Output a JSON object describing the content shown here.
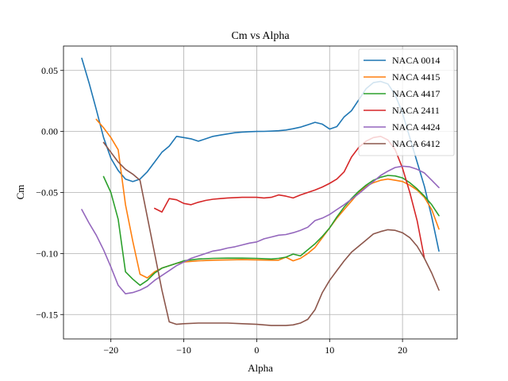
{
  "chart_data": {
    "type": "line",
    "title": "Cm vs Alpha",
    "xlabel": "Alpha",
    "ylabel": "Cm",
    "xlim": [
      -26.5,
      27.5
    ],
    "ylim": [
      -0.17,
      0.07
    ],
    "xticks": [
      -20,
      -10,
      0,
      10,
      20
    ],
    "yticks": [
      -0.15,
      -0.1,
      -0.05,
      0.0,
      0.05
    ],
    "xtick_labels": [
      "−20",
      "−10",
      "0",
      "10",
      "20"
    ],
    "ytick_labels": [
      "−0.15",
      "−0.10",
      "−0.05",
      "0.00",
      "0.05"
    ],
    "grid": true,
    "legend_position": "top-right",
    "series": [
      {
        "name": "NACA 0014",
        "color": "#1f77b4",
        "points": [
          [
            -24,
            0.06
          ],
          [
            -23,
            0.04
          ],
          [
            -22,
            0.018
          ],
          [
            -21,
            -0.005
          ],
          [
            -20,
            -0.022
          ],
          [
            -19,
            -0.032
          ],
          [
            -18,
            -0.039
          ],
          [
            -17,
            -0.041
          ],
          [
            -16,
            -0.039
          ],
          [
            -15,
            -0.033
          ],
          [
            -14,
            -0.025
          ],
          [
            -13,
            -0.017
          ],
          [
            -12,
            -0.012
          ],
          [
            -11,
            -0.004
          ],
          [
            -10,
            -0.005
          ],
          [
            -9,
            -0.006
          ],
          [
            -8,
            -0.008
          ],
          [
            -7,
            -0.006
          ],
          [
            -6,
            -0.004
          ],
          [
            -5,
            -0.003
          ],
          [
            -4,
            -0.002
          ],
          [
            -3,
            -0.001
          ],
          [
            -2,
            -0.0005
          ],
          [
            -1,
            -0.0002
          ],
          [
            0,
            0
          ],
          [
            1,
            0.0001
          ],
          [
            2,
            0.0003
          ],
          [
            3,
            0.0006
          ],
          [
            4,
            0.0012
          ],
          [
            5,
            0.0022
          ],
          [
            6,
            0.0035
          ],
          [
            7,
            0.0055
          ],
          [
            8,
            0.0075
          ],
          [
            9,
            0.006
          ],
          [
            10,
            0.002
          ],
          [
            11,
            0.004
          ],
          [
            12,
            0.012
          ],
          [
            13,
            0.017
          ],
          [
            14,
            0.026
          ],
          [
            15,
            0.035
          ],
          [
            16,
            0.04
          ],
          [
            17,
            0.041
          ],
          [
            18,
            0.039
          ],
          [
            19,
            0.03
          ],
          [
            20,
            0.015
          ],
          [
            21,
            -0.005
          ],
          [
            22,
            -0.025
          ],
          [
            23,
            -0.045
          ],
          [
            24,
            -0.07
          ],
          [
            25,
            -0.098
          ]
        ]
      },
      {
        "name": "NACA 4415",
        "color": "#ff7f0e",
        "points": [
          [
            -22,
            0.01
          ],
          [
            -21,
            0.003
          ],
          [
            -20,
            -0.005
          ],
          [
            -19,
            -0.015
          ],
          [
            -18,
            -0.06
          ],
          [
            -17,
            -0.09
          ],
          [
            -16,
            -0.117
          ],
          [
            -15,
            -0.12
          ],
          [
            -14,
            -0.115
          ],
          [
            -13,
            -0.112
          ],
          [
            -12,
            -0.11
          ],
          [
            -11,
            -0.108
          ],
          [
            -10,
            -0.107
          ],
          [
            -8,
            -0.106
          ],
          [
            -6,
            -0.1055
          ],
          [
            -4,
            -0.1052
          ],
          [
            -2,
            -0.105
          ],
          [
            0,
            -0.1052
          ],
          [
            2,
            -0.1055
          ],
          [
            3,
            -0.1055
          ],
          [
            4,
            -0.103
          ],
          [
            5,
            -0.106
          ],
          [
            6,
            -0.104
          ],
          [
            7,
            -0.1
          ],
          [
            8,
            -0.095
          ],
          [
            9,
            -0.087
          ],
          [
            10,
            -0.079
          ],
          [
            11,
            -0.071
          ],
          [
            12,
            -0.064
          ],
          [
            13,
            -0.057
          ],
          [
            14,
            -0.05
          ],
          [
            15,
            -0.045
          ],
          [
            16,
            -0.042
          ],
          [
            17,
            -0.04
          ],
          [
            18,
            -0.039
          ],
          [
            19,
            -0.04
          ],
          [
            20,
            -0.041
          ],
          [
            21,
            -0.044
          ],
          [
            22,
            -0.048
          ],
          [
            23,
            -0.054
          ],
          [
            24,
            -0.064
          ],
          [
            25,
            -0.08
          ]
        ]
      },
      {
        "name": "NACA 4417",
        "color": "#2ca02c",
        "points": [
          [
            -21,
            -0.037
          ],
          [
            -20,
            -0.05
          ],
          [
            -19,
            -0.072
          ],
          [
            -18,
            -0.115
          ],
          [
            -17,
            -0.121
          ],
          [
            -16,
            -0.126
          ],
          [
            -15,
            -0.122
          ],
          [
            -14,
            -0.116
          ],
          [
            -13,
            -0.112
          ],
          [
            -12,
            -0.11
          ],
          [
            -11,
            -0.108
          ],
          [
            -10,
            -0.106
          ],
          [
            -8,
            -0.1045
          ],
          [
            -6,
            -0.104
          ],
          [
            -4,
            -0.1038
          ],
          [
            -2,
            -0.1038
          ],
          [
            0,
            -0.104
          ],
          [
            2,
            -0.1045
          ],
          [
            3,
            -0.104
          ],
          [
            4,
            -0.103
          ],
          [
            5,
            -0.1005
          ],
          [
            6,
            -0.102
          ],
          [
            7,
            -0.097
          ],
          [
            8,
            -0.092
          ],
          [
            9,
            -0.086
          ],
          [
            10,
            -0.079
          ],
          [
            11,
            -0.07
          ],
          [
            12,
            -0.062
          ],
          [
            13,
            -0.055
          ],
          [
            14,
            -0.049
          ],
          [
            15,
            -0.044
          ],
          [
            16,
            -0.04
          ],
          [
            17,
            -0.0375
          ],
          [
            18,
            -0.036
          ],
          [
            19,
            -0.0365
          ],
          [
            20,
            -0.038
          ],
          [
            21,
            -0.042
          ],
          [
            22,
            -0.047
          ],
          [
            23,
            -0.053
          ],
          [
            24,
            -0.06
          ],
          [
            25,
            -0.069
          ]
        ]
      },
      {
        "name": "NACA 2411",
        "color": "#d62728",
        "points": [
          [
            -14,
            -0.063
          ],
          [
            -13,
            -0.066
          ],
          [
            -12,
            -0.055
          ],
          [
            -11,
            -0.056
          ],
          [
            -10,
            -0.059
          ],
          [
            -9,
            -0.06
          ],
          [
            -8,
            -0.058
          ],
          [
            -7,
            -0.0565
          ],
          [
            -6,
            -0.0555
          ],
          [
            -5,
            -0.055
          ],
          [
            -4,
            -0.0545
          ],
          [
            -2,
            -0.054
          ],
          [
            0,
            -0.054
          ],
          [
            1,
            -0.0545
          ],
          [
            2,
            -0.054
          ],
          [
            3,
            -0.052
          ],
          [
            4,
            -0.053
          ],
          [
            5,
            -0.0545
          ],
          [
            6,
            -0.052
          ],
          [
            7,
            -0.05
          ],
          [
            8,
            -0.048
          ],
          [
            9,
            -0.0455
          ],
          [
            10,
            -0.0425
          ],
          [
            11,
            -0.039
          ],
          [
            12,
            -0.033
          ],
          [
            13,
            -0.021
          ],
          [
            14,
            -0.013
          ],
          [
            15,
            -0.008
          ],
          [
            16,
            -0.005
          ],
          [
            17,
            -0.004
          ],
          [
            18,
            -0.007
          ],
          [
            19,
            -0.015
          ],
          [
            20,
            -0.03
          ],
          [
            21,
            -0.05
          ],
          [
            22,
            -0.073
          ],
          [
            23,
            -0.104
          ]
        ]
      },
      {
        "name": "NACA 4424",
        "color": "#9467bd",
        "points": [
          [
            -24,
            -0.064
          ],
          [
            -23,
            -0.075
          ],
          [
            -22,
            -0.085
          ],
          [
            -21,
            -0.097
          ],
          [
            -20,
            -0.111
          ],
          [
            -19,
            -0.126
          ],
          [
            -18,
            -0.133
          ],
          [
            -17,
            -0.132
          ],
          [
            -16,
            -0.13
          ],
          [
            -15,
            -0.127
          ],
          [
            -14,
            -0.122
          ],
          [
            -13,
            -0.118
          ],
          [
            -12,
            -0.114
          ],
          [
            -11,
            -0.11
          ],
          [
            -10,
            -0.107
          ],
          [
            -9,
            -0.104
          ],
          [
            -8,
            -0.102
          ],
          [
            -7,
            -0.1
          ],
          [
            -6,
            -0.098
          ],
          [
            -5,
            -0.097
          ],
          [
            -4,
            -0.0955
          ],
          [
            -3,
            -0.0945
          ],
          [
            -2,
            -0.093
          ],
          [
            -1,
            -0.0915
          ],
          [
            0,
            -0.0905
          ],
          [
            1,
            -0.088
          ],
          [
            2,
            -0.0865
          ],
          [
            3,
            -0.085
          ],
          [
            4,
            -0.0845
          ],
          [
            5,
            -0.083
          ],
          [
            6,
            -0.081
          ],
          [
            7,
            -0.0785
          ],
          [
            8,
            -0.073
          ],
          [
            9,
            -0.071
          ],
          [
            10,
            -0.068
          ],
          [
            11,
            -0.064
          ],
          [
            12,
            -0.06
          ],
          [
            13,
            -0.0555
          ],
          [
            14,
            -0.051
          ],
          [
            15,
            -0.046
          ],
          [
            16,
            -0.041
          ],
          [
            17,
            -0.036
          ],
          [
            18,
            -0.0325
          ],
          [
            19,
            -0.0295
          ],
          [
            20,
            -0.0285
          ],
          [
            21,
            -0.029
          ],
          [
            22,
            -0.031
          ],
          [
            23,
            -0.034
          ],
          [
            24,
            -0.04
          ],
          [
            25,
            -0.046
          ]
        ]
      },
      {
        "name": "NACA 6412",
        "color": "#8c564b",
        "points": [
          [
            -21,
            -0.009
          ],
          [
            -20,
            -0.017
          ],
          [
            -19,
            -0.025
          ],
          [
            -18,
            -0.031
          ],
          [
            -17,
            -0.035
          ],
          [
            -16,
            -0.04
          ],
          [
            -15,
            -0.07
          ],
          [
            -14,
            -0.1
          ],
          [
            -13,
            -0.13
          ],
          [
            -12,
            -0.156
          ],
          [
            -11,
            -0.158
          ],
          [
            -10,
            -0.1575
          ],
          [
            -8,
            -0.157
          ],
          [
            -6,
            -0.157
          ],
          [
            -4,
            -0.157
          ],
          [
            -2,
            -0.1575
          ],
          [
            0,
            -0.158
          ],
          [
            2,
            -0.159
          ],
          [
            4,
            -0.159
          ],
          [
            5,
            -0.1585
          ],
          [
            6,
            -0.157
          ],
          [
            7,
            -0.154
          ],
          [
            8,
            -0.146
          ],
          [
            9,
            -0.132
          ],
          [
            10,
            -0.122
          ],
          [
            11,
            -0.114
          ],
          [
            12,
            -0.106
          ],
          [
            13,
            -0.099
          ],
          [
            14,
            -0.094
          ],
          [
            15,
            -0.089
          ],
          [
            16,
            -0.084
          ],
          [
            17,
            -0.082
          ],
          [
            18,
            -0.0805
          ],
          [
            19,
            -0.081
          ],
          [
            20,
            -0.083
          ],
          [
            21,
            -0.087
          ],
          [
            22,
            -0.094
          ],
          [
            23,
            -0.104
          ],
          [
            24,
            -0.116
          ],
          [
            25,
            -0.13
          ]
        ]
      }
    ]
  }
}
